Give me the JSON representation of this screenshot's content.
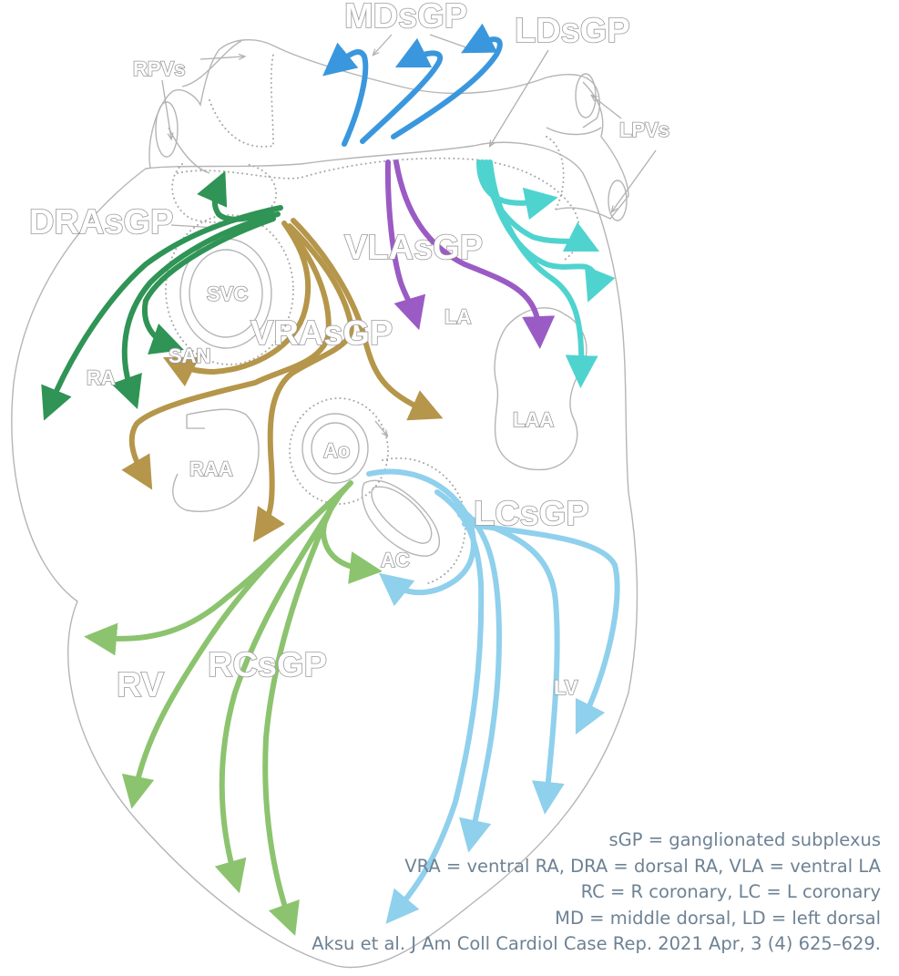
{
  "labels": {
    "mdsgp": "MDsGP",
    "ldsgp": "LDsGP",
    "rpvs": "RPVs",
    "lpvs": "LPVs",
    "drasgp": "DRAsGP",
    "vlasgp": "VLAsGP",
    "vrasgp": "VRAsGP",
    "svc": "SVC",
    "san": "SAN",
    "ra": "RA",
    "la": "LA",
    "laa": "LAA",
    "raa": "RAA",
    "ao": "Ao",
    "lcsgp": "LCsGP",
    "ac": "AC",
    "rv": "RV",
    "rcsgp": "RCsGP",
    "lv": "LV"
  },
  "legend": [
    "sGP = ganglionated subplexus",
    "VRA = ventral RA, DRA = dorsal RA, VLA = ventral LA",
    "RC = R coronary, LC = L coronary",
    "MD = middle dorsal, LD = left dorsal",
    "Aksu et al. J Am Coll Cardiol Case Rep. 2021 Apr, 3 (4) 625–629."
  ],
  "colors": {
    "md_ld": "#3a97de",
    "dra": "#2f9455",
    "vla": "#9b5bc4",
    "vra": "#b5964a",
    "lpv_branch": "#4fd3cf",
    "lc": "#8fd0ec",
    "rc": "#8cc36e"
  }
}
